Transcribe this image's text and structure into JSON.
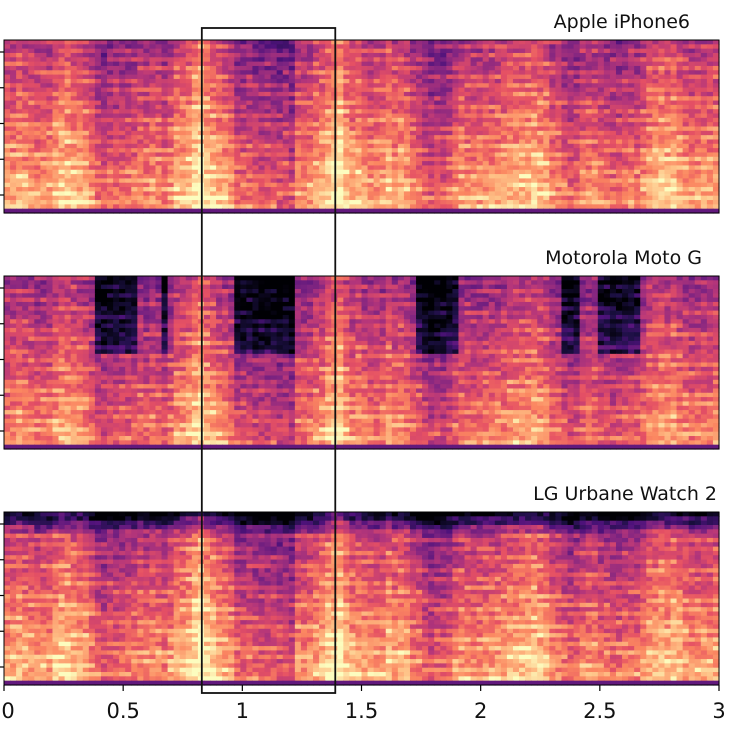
{
  "chart_data": {
    "type": "heatmap",
    "description_kind": "spectrogram",
    "colormap": "magma",
    "x_axis": {
      "range": [
        0,
        3
      ],
      "ticks": [
        0,
        0.5,
        1,
        1.5,
        2,
        2.5,
        3
      ],
      "tick_labels": [
        "0",
        "0.5",
        "1",
        "1.5",
        "2",
        "2.5",
        "3"
      ],
      "label": ""
    },
    "highlight_window": {
      "x_start": 0.83,
      "x_end": 1.39
    },
    "panels": [
      {
        "title": "Apple iPhone6",
        "y_tick_count": 5
      },
      {
        "title": "Motorola Moto G",
        "y_tick_count": 5
      },
      {
        "title": "LG Urbane Watch 2",
        "y_tick_count": 5
      }
    ]
  }
}
